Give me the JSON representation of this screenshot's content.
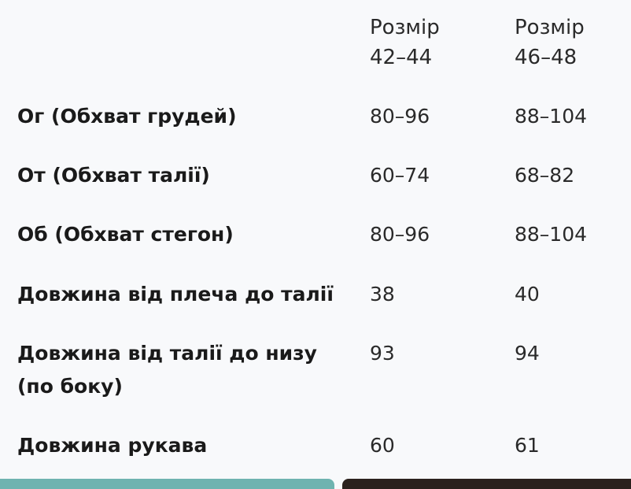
{
  "table": {
    "headers": [
      "Розмір\n42–44",
      "Розмір\n46–48"
    ],
    "header_lines": [
      [
        "Розмір",
        "42–44"
      ],
      [
        "Розмір",
        "46–48"
      ]
    ],
    "rows": [
      {
        "label": "Ог (Обхват грудей)",
        "values": [
          "80–96",
          "88–104"
        ]
      },
      {
        "label": "От (Обхват талії)",
        "values": [
          "60–74",
          "68–82"
        ]
      },
      {
        "label": "Об (Обхват стегон)",
        "values": [
          "80–96",
          "88–104"
        ]
      },
      {
        "label": "Довжина від плеча до талії",
        "values": [
          "38",
          "40"
        ]
      },
      {
        "label_lines": [
          "Довжина від талії до низу",
          "(по боку)"
        ],
        "values": [
          "93",
          "94"
        ]
      },
      {
        "label": "Довжина рукава",
        "values": [
          "60",
          "61"
        ]
      }
    ]
  },
  "colors": {
    "background": "#f8f9fb",
    "thumb_left": "#6fb3b0",
    "thumb_right": "#2b211d"
  }
}
